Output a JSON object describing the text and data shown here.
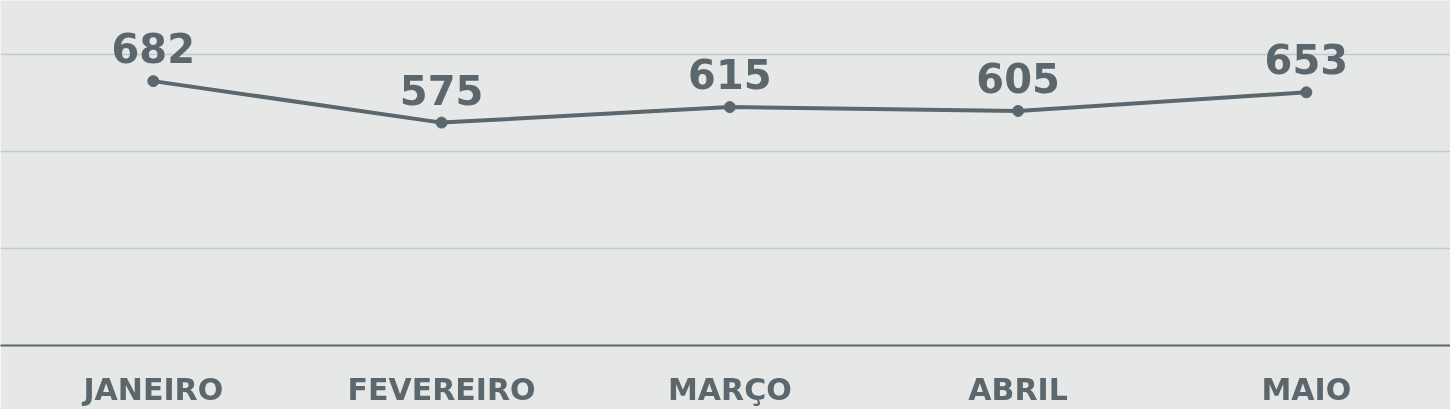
{
  "chart_data": {
    "type": "line",
    "categories": [
      "JANEIRO",
      "FEVEREIRO",
      "MARÇO",
      "ABRIL",
      "MAIO"
    ],
    "series": [
      {
        "color": "#5b676c",
        "values": [
          682,
          575,
          615,
          605,
          653
        ]
      }
    ],
    "ylim": [
      0,
      890
    ],
    "yticks": [
      {
        "value": 250,
        "label": null
      },
      {
        "value": 500,
        "label": null
      },
      {
        "value": 750,
        "label": null
      }
    ],
    "tick_labels": "x",
    "grid": "y",
    "data_labels": true,
    "marker": "circle",
    "line_style": "solid"
  }
}
